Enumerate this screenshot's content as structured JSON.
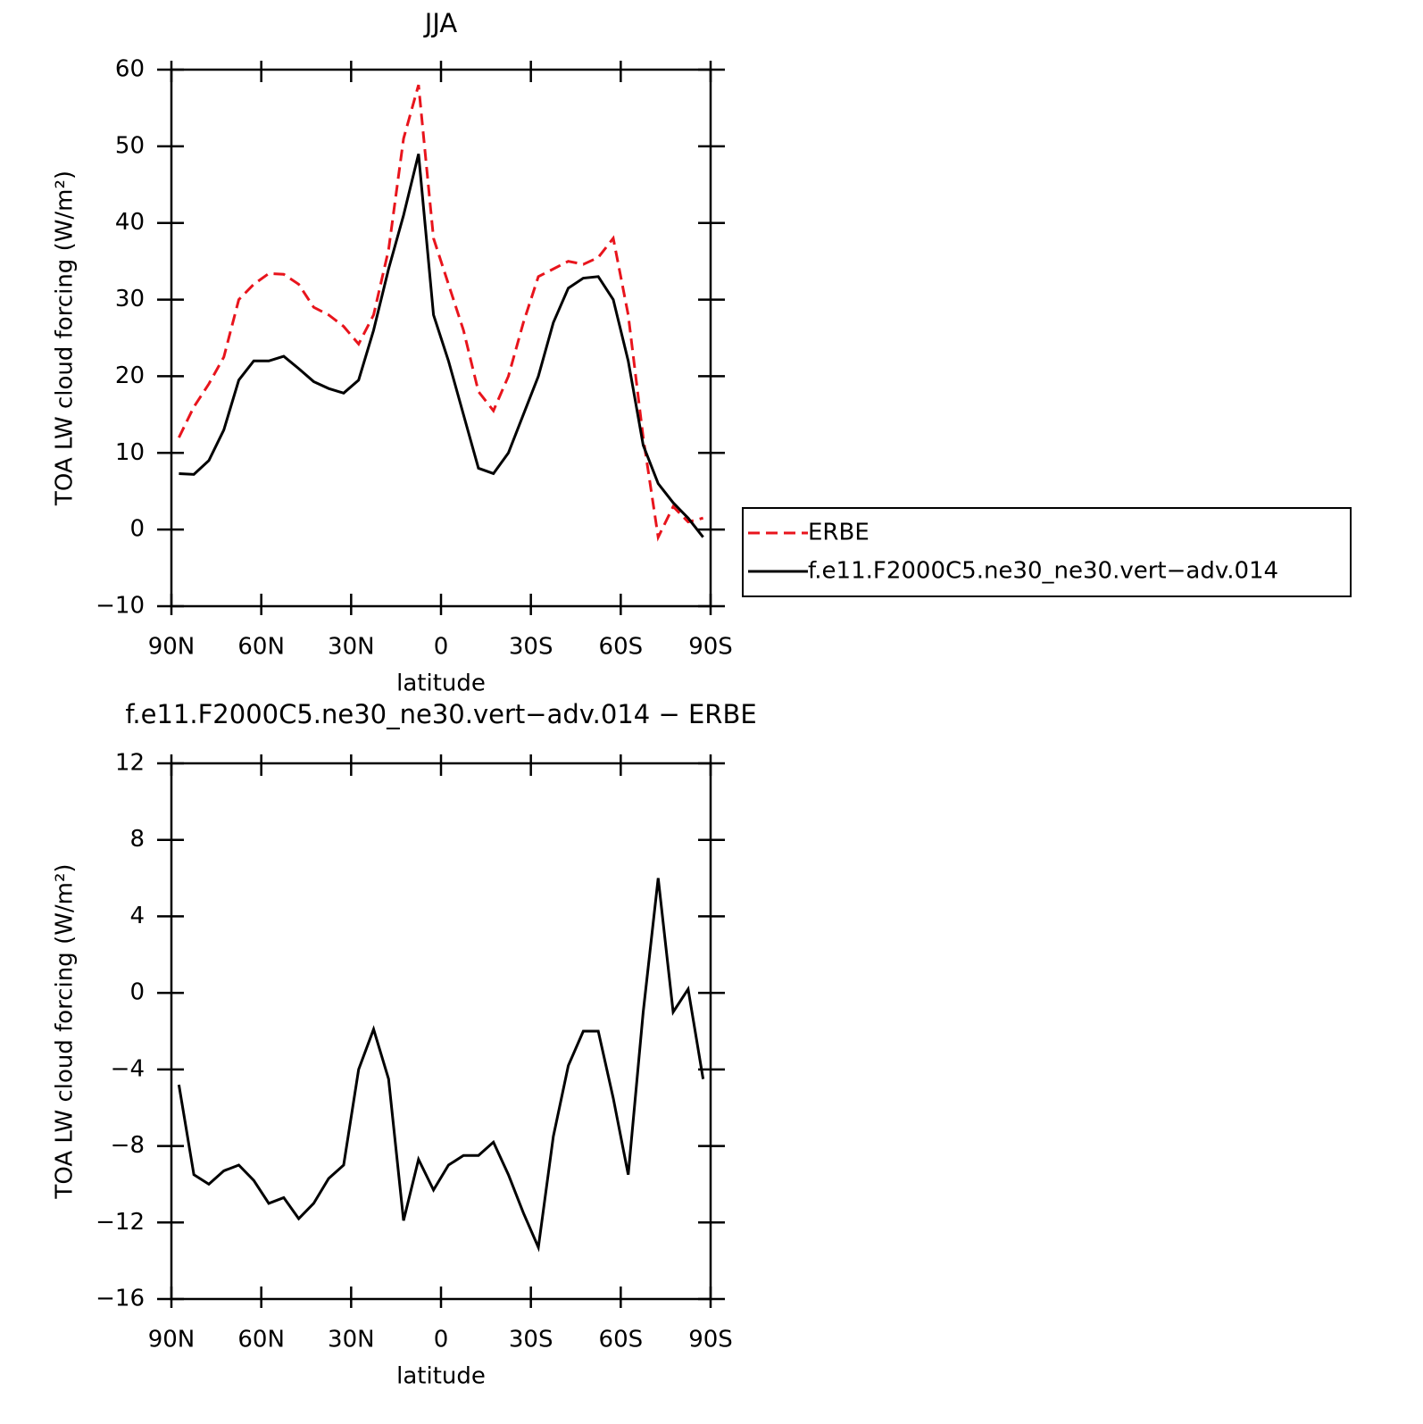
{
  "chart_data": [
    {
      "type": "line",
      "title": "JJA",
      "xlabel": "latitude",
      "ylabel": "TOA LW cloud forcing (W/m²)",
      "x": [
        87.5,
        82.5,
        77.5,
        72.5,
        67.5,
        62.5,
        57.5,
        52.5,
        47.5,
        42.5,
        37.5,
        32.5,
        27.5,
        22.5,
        17.5,
        12.5,
        7.5,
        2.5,
        -2.5,
        -7.5,
        -12.5,
        -17.5,
        -22.5,
        -27.5,
        -32.5,
        -37.5,
        -42.5,
        -47.5,
        -52.5,
        -57.5,
        -62.5,
        -67.5,
        -72.5,
        -77.5,
        -82.5,
        -87.5
      ],
      "series": [
        {
          "name": "ERBE",
          "color": "#e8141c",
          "dashed": true,
          "values": [
            12,
            16,
            19,
            22.5,
            30,
            32,
            33.4,
            33.3,
            32,
            29,
            28,
            26.5,
            24.2,
            28,
            36.5,
            51,
            58,
            38,
            32,
            26,
            18,
            15.5,
            20,
            27,
            33,
            34,
            35,
            34.6,
            35.5,
            38,
            28,
            12,
            -1,
            3,
            1,
            1.5
          ]
        },
        {
          "name": "f.e11.F2000C5.ne30_ne30.vert−adv.014",
          "color": "#000000",
          "dashed": false,
          "values": [
            7.3,
            7.2,
            9,
            13,
            19.5,
            22,
            22,
            22.6,
            21,
            19.3,
            18.4,
            17.8,
            19.5,
            26,
            34,
            41,
            49,
            28,
            22,
            15,
            8,
            7.3,
            10,
            15,
            20,
            27,
            31.5,
            32.8,
            33,
            30,
            22,
            11,
            6,
            3.5,
            1.5,
            -1
          ]
        }
      ],
      "xlim": [
        90,
        -90
      ],
      "xticks": [
        {
          "value": 90,
          "label": "90N"
        },
        {
          "value": 60,
          "label": "60N"
        },
        {
          "value": 30,
          "label": "30N"
        },
        0,
        {
          "value": -30,
          "label": "30S"
        },
        {
          "value": -60,
          "label": "60S"
        },
        {
          "value": -90,
          "label": "90S"
        }
      ],
      "ylim": [
        -10,
        60
      ],
      "yticks": [
        {
          "value": -10,
          "label": "−10"
        },
        0,
        10,
        20,
        30,
        40,
        50,
        60
      ],
      "legend": true
    },
    {
      "type": "line",
      "title": "f.e11.F2000C5.ne30_ne30.vert−adv.014 − ERBE",
      "xlabel": "latitude",
      "ylabel": "TOA LW cloud forcing (W/m²)",
      "x": [
        87.5,
        82.5,
        77.5,
        72.5,
        67.5,
        62.5,
        57.5,
        52.5,
        47.5,
        42.5,
        37.5,
        32.5,
        27.5,
        22.5,
        17.5,
        12.5,
        7.5,
        2.5,
        -2.5,
        -7.5,
        -12.5,
        -17.5,
        -22.5,
        -27.5,
        -32.5,
        -37.5,
        -42.5,
        -47.5,
        -52.5,
        -57.5,
        -62.5,
        -67.5,
        -72.5,
        -77.5,
        -82.5,
        -87.5
      ],
      "series": [
        {
          "color": "#000000",
          "dashed": false,
          "values": [
            -4.8,
            -9.5,
            -10,
            -9.3,
            -9,
            -9.8,
            -11,
            -10.7,
            -11.8,
            -11,
            -9.7,
            -9,
            -4,
            -1.9,
            -4.5,
            -11.9,
            -8.7,
            -10.3,
            -9,
            -8.5,
            -8.5,
            -7.8,
            -9.5,
            -11.5,
            -13.3,
            -7.5,
            -3.8,
            -2,
            -2,
            -5.5,
            -9.5,
            -1,
            6,
            -1,
            0.2,
            -4.5
          ]
        }
      ],
      "xlim": [
        90,
        -90
      ],
      "xticks": [
        {
          "value": 90,
          "label": "90N"
        },
        {
          "value": 60,
          "label": "60N"
        },
        {
          "value": 30,
          "label": "30N"
        },
        0,
        {
          "value": -30,
          "label": "30S"
        },
        {
          "value": -60,
          "label": "60S"
        },
        {
          "value": -90,
          "label": "90S"
        }
      ],
      "ylim": [
        -16,
        12
      ],
      "yticks": [
        {
          "value": -16,
          "label": "−16"
        },
        {
          "value": -12,
          "label": "−12"
        },
        {
          "value": -8,
          "label": "−8"
        },
        {
          "value": -4,
          "label": "−4"
        },
        0,
        4,
        8,
        12
      ],
      "legend": false
    }
  ]
}
